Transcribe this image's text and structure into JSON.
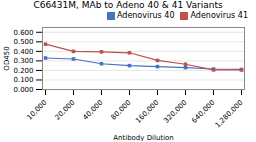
{
  "chart_data": {
    "type": "line",
    "title": "C66431M, MAb to Adeno 40 & 41 Variants",
    "xlabel": "Antibody Dilution",
    "ylabel": "OD450",
    "categories": [
      "10,000",
      "20,000",
      "40,000",
      "80,000",
      "160,000",
      "320,000",
      "640,000",
      "1,280,000"
    ],
    "series": [
      {
        "name": "Adenovirus 40",
        "color": "#4472c4",
        "marker": "square",
        "values": [
          0.33,
          0.32,
          0.27,
          0.25,
          0.24,
          0.23,
          0.215,
          0.21
        ]
      },
      {
        "name": "Adenovirus 41",
        "color": "#c0504d",
        "marker": "square",
        "values": [
          0.475,
          0.4,
          0.395,
          0.385,
          0.305,
          0.265,
          0.205,
          0.205
        ]
      }
    ],
    "ylim": [
      0.0,
      0.65
    ],
    "yticks": [
      {
        "value": 0.0,
        "label": "0.000"
      },
      {
        "value": 0.1,
        "label": "0.100"
      },
      {
        "value": 0.2,
        "label": "0.200"
      },
      {
        "value": 0.3,
        "label": "0.300"
      },
      {
        "value": 0.4,
        "label": "0.400"
      },
      {
        "value": 0.5,
        "label": "0.500"
      },
      {
        "value": 0.6,
        "label": "0.600"
      }
    ],
    "grid": "y",
    "legend": "upper right"
  }
}
